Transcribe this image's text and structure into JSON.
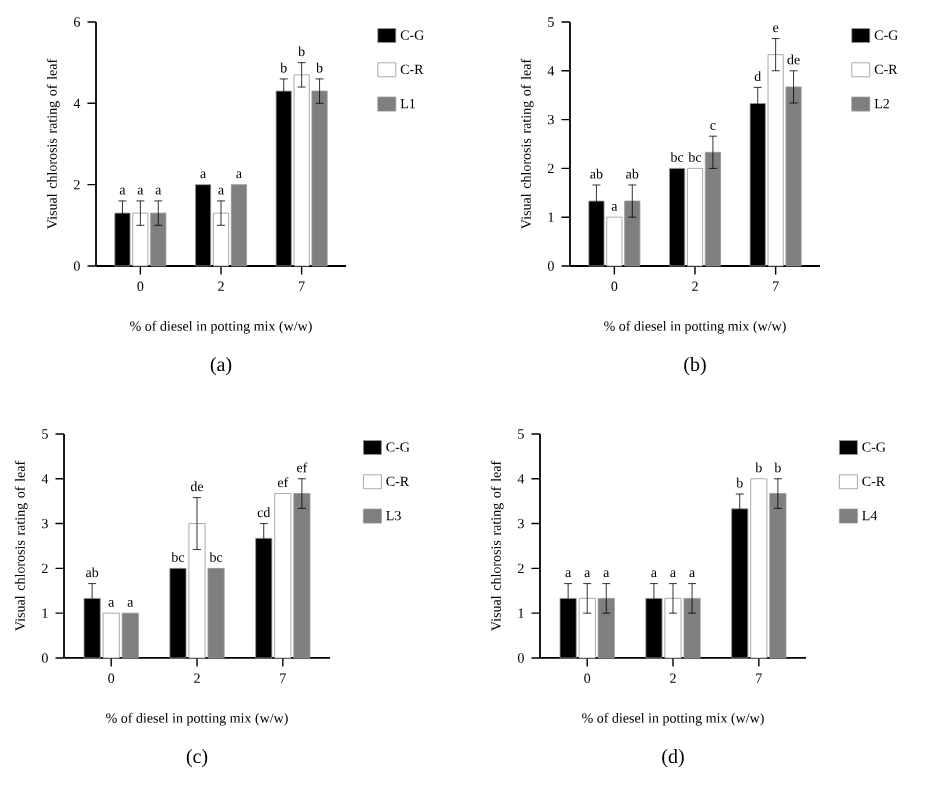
{
  "chart_data": [
    {
      "type": "bar",
      "title": "(a)",
      "xlabel": "% of diesel in potting mix (w/w)",
      "ylabel": "Visual chlorosis rating of leaf",
      "categories": [
        "0",
        "2",
        "7"
      ],
      "ylim": [
        0,
        6
      ],
      "yticks": [
        0,
        2,
        4,
        6
      ],
      "legend": "right",
      "series": [
        {
          "name": "C-G",
          "color": "#000000",
          "values": [
            1.3,
            2,
            4.3
          ],
          "errors": [
            0.3,
            null,
            0.3
          ],
          "value_labels": [
            "a",
            "a",
            "b"
          ]
        },
        {
          "name": "C-R",
          "color": "#ffffff",
          "values": [
            1.3,
            1.3,
            4.7
          ],
          "errors": [
            0.3,
            0.3,
            0.3
          ],
          "value_labels": [
            "a",
            "a",
            "b"
          ]
        },
        {
          "name": "L1",
          "color": "#7f7f7f",
          "values": [
            1.3,
            2,
            4.3
          ],
          "errors": [
            0.3,
            null,
            0.3
          ],
          "value_labels": [
            "a",
            "a",
            "b"
          ]
        }
      ]
    },
    {
      "type": "bar",
      "title": "(b)",
      "xlabel": "% of diesel in potting mix (w/w)",
      "ylabel": "Visual chlorosis rating of leaf",
      "categories": [
        "0",
        "2",
        "7"
      ],
      "ylim": [
        0,
        5
      ],
      "yticks": [
        0,
        1,
        2,
        3,
        4,
        5
      ],
      "legend": "right",
      "series": [
        {
          "name": "C-G",
          "color": "#000000",
          "values": [
            1.33,
            2,
            3.33
          ],
          "errors": [
            0.33,
            null,
            0.33
          ],
          "value_labels": [
            "ab",
            "bc",
            "d"
          ]
        },
        {
          "name": "C-R",
          "color": "#ffffff",
          "values": [
            1,
            2,
            4.33
          ],
          "errors": [
            null,
            null,
            0.33
          ],
          "value_labels": [
            "a",
            "bc",
            "e"
          ]
        },
        {
          "name": "L2",
          "color": "#7f7f7f",
          "values": [
            1.33,
            2.33,
            3.67
          ],
          "errors": [
            0.33,
            0.33,
            0.33
          ],
          "value_labels": [
            "ab",
            "c",
            "de"
          ]
        }
      ]
    },
    {
      "type": "bar",
      "title": "(c)",
      "xlabel": "% of diesel in potting mix (w/w)",
      "ylabel": "Visual chlorosis rating of leaf",
      "categories": [
        "0",
        "2",
        "7"
      ],
      "ylim": [
        0,
        5
      ],
      "yticks": [
        0,
        1,
        2,
        3,
        4,
        5
      ],
      "legend": "right",
      "series": [
        {
          "name": "C-G",
          "color": "#000000",
          "values": [
            1.33,
            2,
            2.67
          ],
          "errors": [
            0.33,
            null,
            0.33
          ],
          "value_labels": [
            "ab",
            "bc",
            "cd"
          ]
        },
        {
          "name": "C-R",
          "color": "#ffffff",
          "values": [
            1,
            3,
            3.67
          ],
          "errors": [
            null,
            0.58,
            null
          ],
          "value_labels": [
            "a",
            "de",
            "ef"
          ]
        },
        {
          "name": "L3",
          "color": "#7f7f7f",
          "values": [
            1,
            2,
            3.67
          ],
          "errors": [
            null,
            null,
            0.33
          ],
          "value_labels": [
            "a",
            "bc",
            "ef"
          ]
        }
      ]
    },
    {
      "type": "bar",
      "title": "(d)",
      "xlabel": "% of diesel in potting mix (w/w)",
      "ylabel": "Visual chlorosis rating of leaf",
      "categories": [
        "0",
        "2",
        "7"
      ],
      "ylim": [
        0,
        5
      ],
      "yticks": [
        0,
        1,
        2,
        3,
        4,
        5
      ],
      "legend": "right",
      "series": [
        {
          "name": "C-G",
          "color": "#000000",
          "values": [
            1.33,
            1.33,
            3.33
          ],
          "errors": [
            0.33,
            0.33,
            0.33
          ],
          "value_labels": [
            "a",
            "a",
            "b"
          ]
        },
        {
          "name": "C-R",
          "color": "#ffffff",
          "values": [
            1.33,
            1.33,
            4
          ],
          "errors": [
            0.33,
            0.33,
            null
          ],
          "value_labels": [
            "a",
            "a",
            "b"
          ]
        },
        {
          "name": "L4",
          "color": "#7f7f7f",
          "values": [
            1.33,
            1.33,
            3.67
          ],
          "errors": [
            0.33,
            0.33,
            0.33
          ],
          "value_labels": [
            "a",
            "a",
            "b"
          ]
        }
      ]
    }
  ]
}
